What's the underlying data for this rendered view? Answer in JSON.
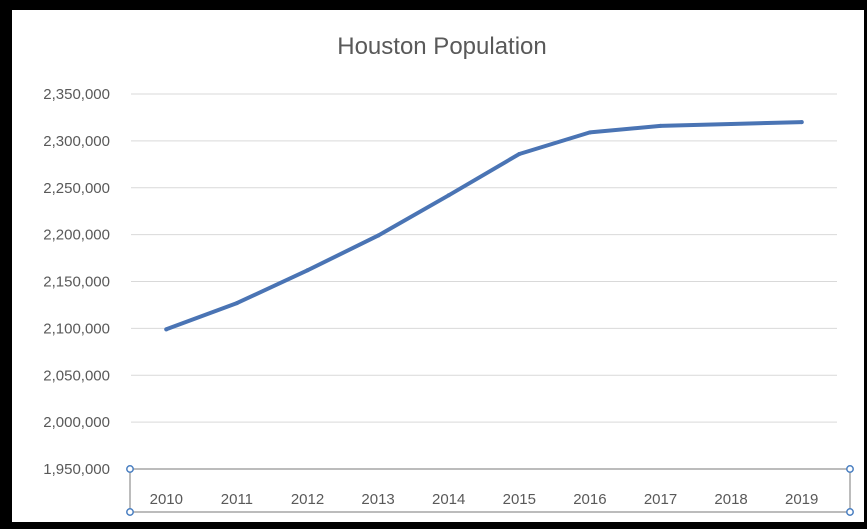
{
  "chart_data": {
    "type": "line",
    "title": "Houston Population",
    "xlabel": "",
    "ylabel": "",
    "categories": [
      "2010",
      "2011",
      "2012",
      "2013",
      "2014",
      "2015",
      "2016",
      "2017",
      "2018",
      "2019"
    ],
    "series": [
      {
        "values": [
          2099000,
          2127000,
          2162000,
          2199000,
          2242000,
          2286000,
          2309000,
          2316000,
          2318000,
          2320000
        ],
        "color": "#4a74b4"
      }
    ],
    "y_tick_labels": [
      "1,950,000",
      "2,000,000",
      "2,050,000",
      "2,100,000",
      "2,150,000",
      "2,200,000",
      "2,250,000",
      "2,300,000",
      "2,350,000"
    ],
    "y_ticks": [
      1950000,
      2000000,
      2050000,
      2100000,
      2150000,
      2200000,
      2250000,
      2300000,
      2350000
    ],
    "ylim": [
      1950000,
      2350000
    ],
    "grid": true,
    "legend": "none",
    "colors": {
      "gridline": "#d9d9d9",
      "text": "#595959",
      "selection": "#4a7fc1"
    }
  }
}
